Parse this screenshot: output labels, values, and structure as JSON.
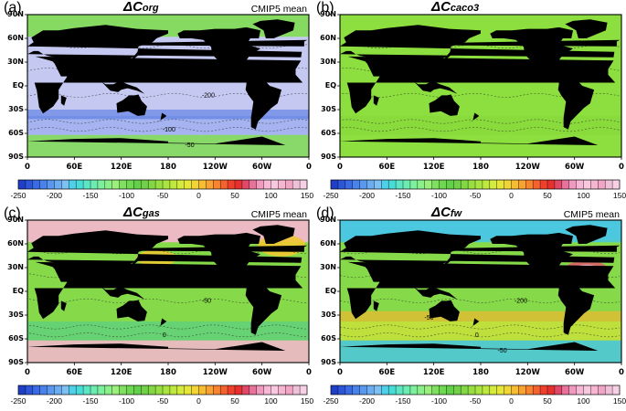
{
  "panels": [
    {
      "label": "(a)",
      "symbol": "ΔC",
      "subscript": "org",
      "tag": "CMIP5 mean",
      "colors": {
        "ocean": "#c5c9f2",
        "accent": "#4a6fe0",
        "band": "#9fb0f0",
        "polar": "#7edc52"
      },
      "contour_labels": [
        "-200",
        "-100",
        "-50"
      ]
    },
    {
      "label": "(b)",
      "symbol": "ΔC",
      "subscript": "caco3",
      "tag": "",
      "colors": {
        "ocean": "#8cdf3e",
        "accent": "#9de24a",
        "band": "#88da3c",
        "polar": "#8cdf3e"
      },
      "contour_labels": []
    },
    {
      "label": "(c)",
      "symbol": "ΔC",
      "subscript": "gas",
      "tag": "CMIP5 mean",
      "colors": {
        "ocean": "#86da4a",
        "accent": "#f0c832",
        "band": "#62d07a",
        "polar": "#f6b6cf"
      },
      "contour_labels": [
        "-50",
        "0"
      ]
    },
    {
      "label": "(d)",
      "symbol": "ΔC",
      "subscript": "fw",
      "tag": "CMIP5 mean",
      "colors": {
        "ocean": "#86da4a",
        "accent": "#e8b830",
        "band": "#c8e03a",
        "polar": "#4ac6e0"
      },
      "contour_labels": [
        "-200",
        "0",
        "-50",
        "-50"
      ]
    }
  ],
  "axes": {
    "lat_labels": [
      "90N",
      "60N",
      "30N",
      "EQ",
      "30S",
      "60S",
      "90S"
    ],
    "lon_labels": [
      "0",
      "60E",
      "120E",
      "180",
      "120W",
      "60W",
      "0"
    ]
  },
  "colorbar": {
    "tick_labels": [
      "-250",
      "-200",
      "-150",
      "-100",
      "-50",
      "0",
      "50",
      "100",
      "150"
    ],
    "range": [
      -250,
      150
    ],
    "step": 10,
    "colors": [
      "#1f3fc8",
      "#2c55d8",
      "#3a6ae4",
      "#4a82ec",
      "#5a98f0",
      "#6cadf2",
      "#7ec0f2",
      "#4ed0ea",
      "#48dcd8",
      "#5ce6c4",
      "#6cecb0",
      "#7cf09c",
      "#8cf08a",
      "#9cef7a",
      "#7fe060",
      "#6ed850",
      "#62d048",
      "#70d048",
      "#82d844",
      "#96de42",
      "#aae440",
      "#bee83e",
      "#d4ea3c",
      "#e6e63a",
      "#f2d436",
      "#f6bc34",
      "#f8a232",
      "#f88430",
      "#f4622e",
      "#ee402c",
      "#e6302e",
      "#e04868",
      "#e8729a",
      "#f09ac0",
      "#f6b8d4",
      "#f8c8de",
      "#f6b6d0",
      "#f2a6c6",
      "#f0c0d8",
      "#f6d0e4"
    ]
  }
}
